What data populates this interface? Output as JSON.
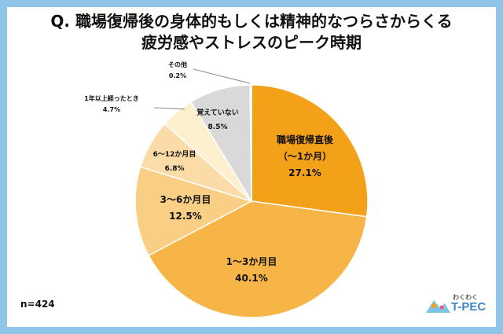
{
  "title": {
    "line1": "Q.  職場復帰後の身体的もしくは精神的なつらさからくる",
    "line2": "疲労感やストレスのピーク時期"
  },
  "footnote": "n=424",
  "logo": {
    "small": "わくわく",
    "main": "T-PEC"
  },
  "colors": {
    "background_frame": "#8ec5e8",
    "slice_1": "#f4a11a",
    "slice_2": "#f7b548",
    "slice_3": "#f9cf86",
    "slice_4": "#fbdca8",
    "slice_5": "#fdf0cf",
    "slice_6": "#d9d9d9",
    "slice_7": "#ffffff"
  },
  "chart_data": {
    "type": "pie",
    "start": "12 o'clock",
    "direction": "clockwise",
    "unit": "%",
    "slices": [
      {
        "label": "職場復帰直後",
        "label2": "（〜1か月）",
        "value": 27.1
      },
      {
        "label": "1〜3か月目",
        "value": 40.1
      },
      {
        "label": "3〜6か月目",
        "value": 12.5
      },
      {
        "label": "6〜12か月目",
        "value": 6.8
      },
      {
        "label": "1年以上経ったとき",
        "value": 4.7
      },
      {
        "label": "覚えていない",
        "value": 8.5
      },
      {
        "label": "その他",
        "value": 0.2
      }
    ]
  }
}
